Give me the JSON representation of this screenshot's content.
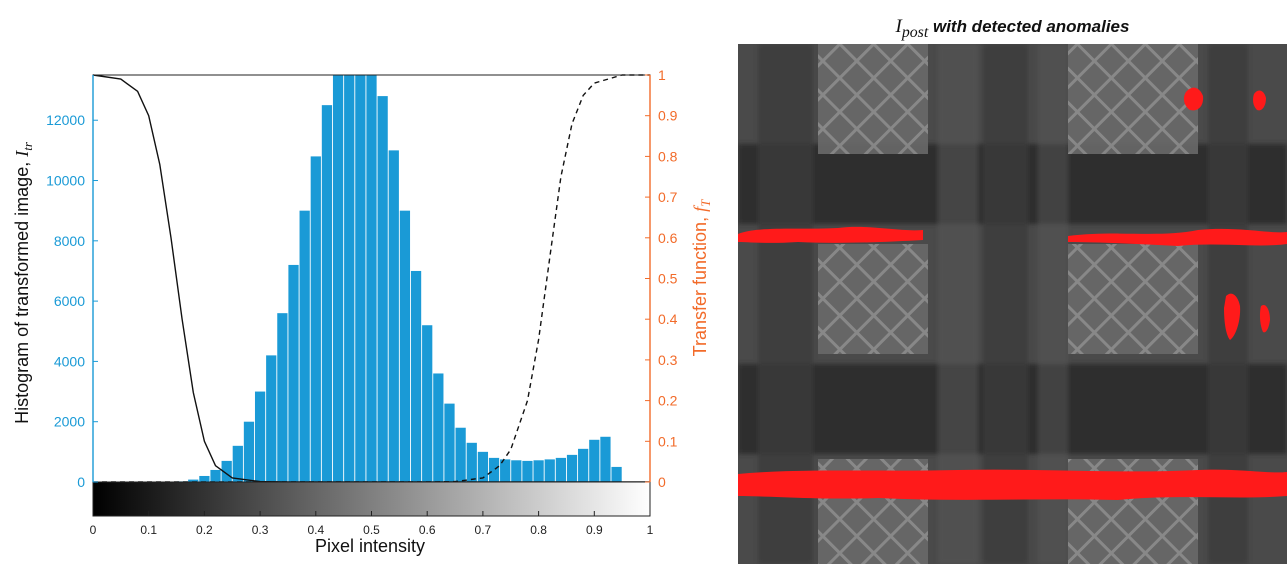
{
  "chart_data": [
    {
      "type": "bar",
      "xlabel": "Pixel intensity",
      "ylabel": "Histogram of transformed image, I_tr",
      "y2label": "Transfer function, f_T",
      "xlim": [
        0,
        1
      ],
      "ylim": [
        0,
        13500
      ],
      "y2lim": [
        0,
        1
      ],
      "xticks": [
        "0",
        "0.1",
        "0.2",
        "0.3",
        "0.4",
        "0.5",
        "0.6",
        "0.7",
        "0.8",
        "0.9",
        "1"
      ],
      "yticks": [
        "0",
        "2000",
        "4000",
        "6000",
        "8000",
        "10000",
        "12000"
      ],
      "y2ticks": [
        "0",
        "0.1",
        "0.2",
        "0.3",
        "0.4",
        "0.5",
        "0.6",
        "0.7",
        "0.8",
        "0.9",
        "1"
      ],
      "bar_color": "#1a9ad6",
      "left_axis_color": "#1a9ad6",
      "right_axis_color": "#f26b2a",
      "grid": false,
      "colorbar": "grayscale 0 to 1 below x-axis",
      "histogram": {
        "bin_centers": [
          0.16,
          0.18,
          0.2,
          0.22,
          0.24,
          0.26,
          0.28,
          0.3,
          0.32,
          0.34,
          0.36,
          0.38,
          0.4,
          0.42,
          0.44,
          0.46,
          0.48,
          0.5,
          0.52,
          0.54,
          0.56,
          0.58,
          0.6,
          0.62,
          0.64,
          0.66,
          0.68,
          0.7,
          0.72,
          0.74,
          0.76,
          0.78,
          0.8,
          0.82,
          0.84,
          0.86,
          0.88,
          0.9,
          0.92,
          0.94,
          0.96
        ],
        "values": [
          20,
          80,
          200,
          400,
          700,
          1200,
          2000,
          3000,
          4200,
          5600,
          7200,
          9000,
          10800,
          12500,
          13500,
          13500,
          13500,
          13500,
          12800,
          11000,
          9000,
          7000,
          5200,
          3600,
          2600,
          1800,
          1300,
          1000,
          800,
          750,
          720,
          700,
          720,
          750,
          800,
          900,
          1100,
          1400,
          1500,
          500,
          0
        ]
      },
      "series": [
        {
          "name": "",
          "style": "solid",
          "x": [
            0,
            0.05,
            0.08,
            0.1,
            0.12,
            0.14,
            0.16,
            0.18,
            0.2,
            0.22,
            0.25,
            0.3,
            0.35,
            1
          ],
          "y": [
            1,
            0.99,
            0.96,
            0.9,
            0.78,
            0.6,
            0.4,
            0.22,
            0.1,
            0.04,
            0.01,
            0.001,
            0,
            0
          ]
        },
        {
          "name": "",
          "style": "dashed",
          "x": [
            0,
            0.6,
            0.65,
            0.7,
            0.73,
            0.75,
            0.78,
            0.8,
            0.82,
            0.84,
            0.86,
            0.88,
            0.9,
            0.95,
            1
          ],
          "y": [
            0,
            0,
            0.001,
            0.01,
            0.04,
            0.08,
            0.2,
            0.35,
            0.55,
            0.75,
            0.88,
            0.95,
            0.98,
            1,
            1
          ]
        }
      ]
    },
    {
      "type": "image",
      "title_math": "I_post",
      "title_text": "with detected anomalies",
      "anomaly_color": "#ff1a1a"
    }
  ]
}
